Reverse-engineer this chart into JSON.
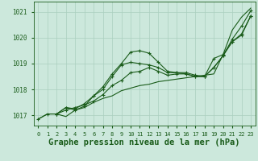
{
  "background_color": "#cce8dc",
  "grid_color": "#aacfbf",
  "line_color": "#1a5c1a",
  "xlabel": "Graphe pression niveau de la mer (hPa)",
  "xlim": [
    -0.5,
    23.5
  ],
  "ylim": [
    1016.6,
    1021.4
  ],
  "yticks": [
    1017,
    1018,
    1019,
    1020,
    1021
  ],
  "xticks": [
    0,
    1,
    2,
    3,
    4,
    5,
    6,
    7,
    8,
    9,
    10,
    11,
    12,
    13,
    14,
    15,
    16,
    17,
    18,
    19,
    20,
    21,
    22,
    23
  ],
  "series1_x": [
    0,
    1,
    2,
    3,
    4,
    5,
    6,
    7,
    8,
    9,
    10,
    11,
    12,
    13,
    14,
    15,
    16,
    17,
    18,
    19,
    20,
    21,
    22,
    23
  ],
  "series1_y": [
    1016.85,
    1017.05,
    1017.05,
    1016.95,
    1017.2,
    1017.3,
    1017.5,
    1017.65,
    1017.75,
    1017.95,
    1018.05,
    1018.15,
    1018.2,
    1018.3,
    1018.35,
    1018.4,
    1018.45,
    1018.5,
    1018.55,
    1018.6,
    1019.35,
    1020.3,
    1020.8,
    1021.15
  ],
  "series2_x": [
    0,
    1,
    2,
    3,
    4,
    5,
    6,
    7,
    8,
    9,
    10,
    11,
    12,
    13,
    14,
    15,
    16,
    17,
    18,
    19,
    20,
    21,
    22,
    23
  ],
  "series2_y": [
    1016.85,
    1017.05,
    1017.05,
    1017.2,
    1017.3,
    1017.4,
    1017.55,
    1017.8,
    1018.15,
    1018.35,
    1018.65,
    1018.7,
    1018.85,
    1018.7,
    1018.55,
    1018.6,
    1018.6,
    1018.5,
    1018.5,
    1018.85,
    1019.3,
    1019.95,
    1020.45,
    1021.05
  ],
  "series3_x": [
    2,
    3,
    4,
    5,
    6,
    7,
    8,
    9,
    10,
    11,
    12,
    13,
    14,
    15,
    16,
    17,
    18,
    19,
    20,
    21,
    22,
    23
  ],
  "series3_y": [
    1017.05,
    1017.3,
    1017.25,
    1017.45,
    1017.75,
    1018.0,
    1018.5,
    1018.95,
    1019.05,
    1019.0,
    1018.95,
    1018.85,
    1018.65,
    1018.65,
    1018.6,
    1018.5,
    1018.5,
    1018.85,
    1019.3,
    1019.85,
    1020.15,
    1020.85
  ],
  "series4_x": [
    2,
    3,
    4,
    5,
    6,
    7,
    8,
    9,
    10,
    11,
    12,
    13,
    14,
    15,
    16,
    17,
    18,
    19,
    20,
    21,
    22,
    23
  ],
  "series4_y": [
    1017.05,
    1017.3,
    1017.2,
    1017.35,
    1017.75,
    1018.1,
    1018.6,
    1019.0,
    1019.45,
    1019.5,
    1019.4,
    1019.05,
    1018.7,
    1018.65,
    1018.65,
    1018.55,
    1018.5,
    1019.2,
    1019.35,
    1019.85,
    1020.1,
    1020.85
  ]
}
